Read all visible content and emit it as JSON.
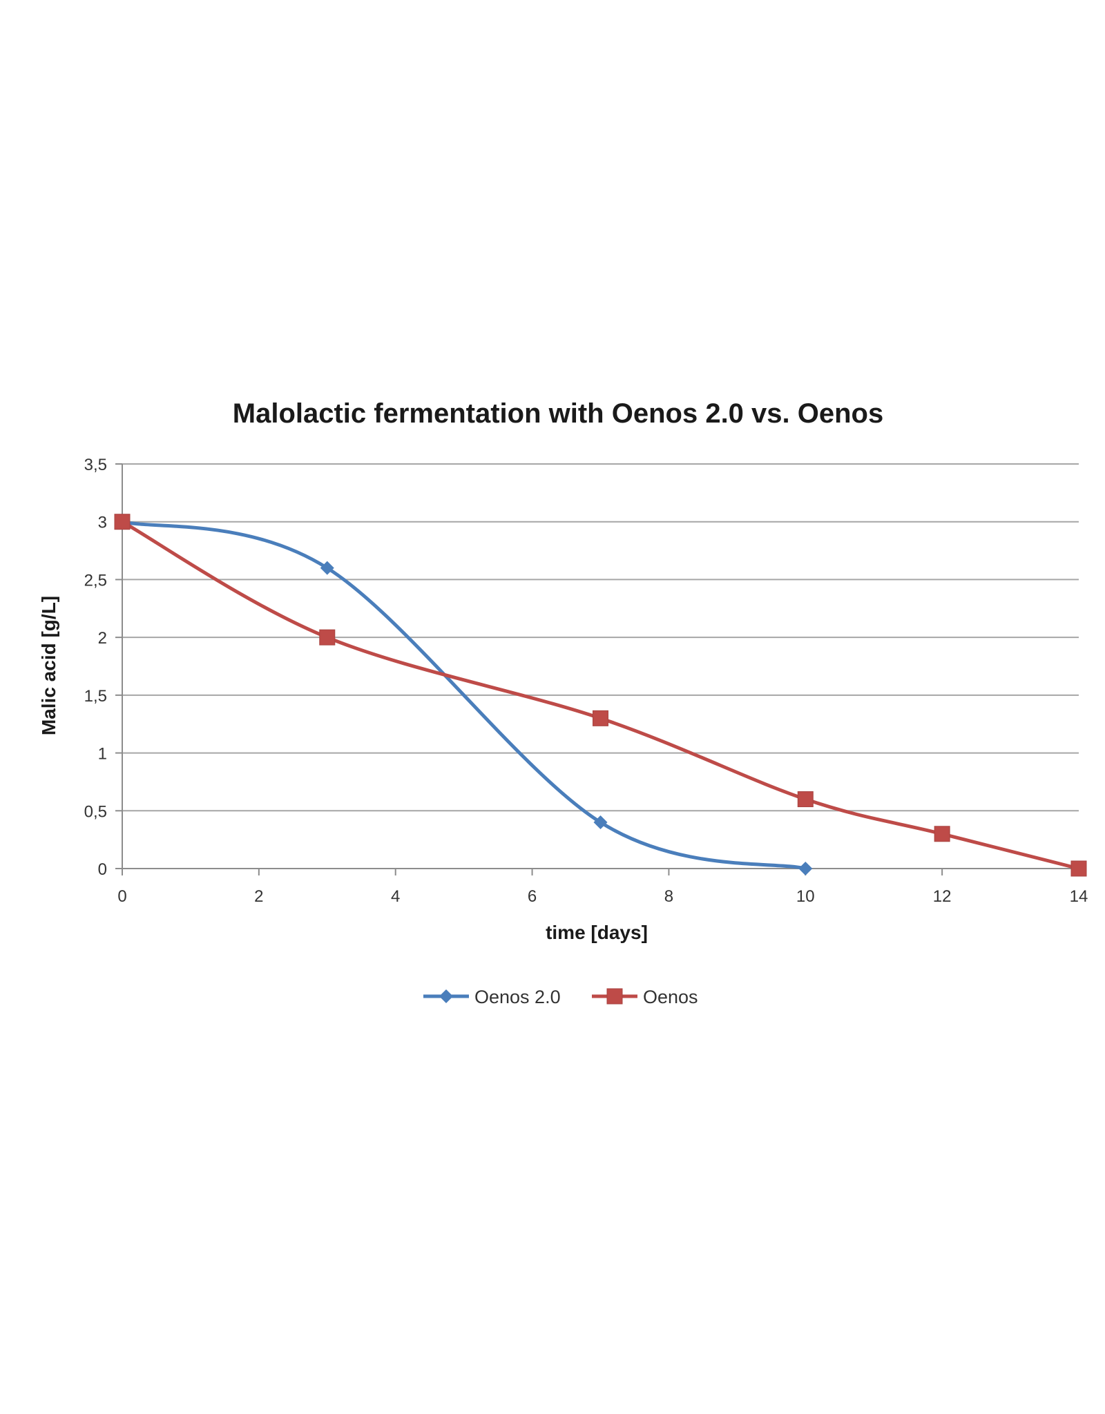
{
  "chart_data": {
    "type": "line",
    "title": "Malolactic fermentation with Oenos 2.0 vs. Oenos",
    "xlabel": "time [days]",
    "ylabel": "Malic acid [g/L]",
    "xlim": [
      0,
      14
    ],
    "ylim": [
      0,
      3.5
    ],
    "x_ticks": [
      0,
      2,
      4,
      6,
      8,
      10,
      12,
      14
    ],
    "y_ticks": [
      0,
      0.5,
      1,
      1.5,
      2,
      2.5,
      3,
      3.5
    ],
    "x_tick_labels": [
      "0",
      "2",
      "4",
      "6",
      "8",
      "10",
      "12",
      "14"
    ],
    "y_tick_labels": [
      "0",
      "0,5",
      "1",
      "1,5",
      "2",
      "2,5",
      "3",
      "3,5"
    ],
    "grid": true,
    "smooth": true,
    "legend_position": "bottom",
    "series": [
      {
        "name": "Oenos 2.0",
        "color": "#4a7ebb",
        "marker": "diamond",
        "x": [
          0,
          3,
          7,
          10
        ],
        "y": [
          3,
          2.6,
          0.4,
          0
        ]
      },
      {
        "name": "Oenos",
        "color": "#be4b48",
        "marker": "square",
        "x": [
          0,
          3,
          7,
          10,
          12,
          14
        ],
        "y": [
          3,
          2,
          1.3,
          0.6,
          0.3,
          0
        ]
      }
    ]
  }
}
